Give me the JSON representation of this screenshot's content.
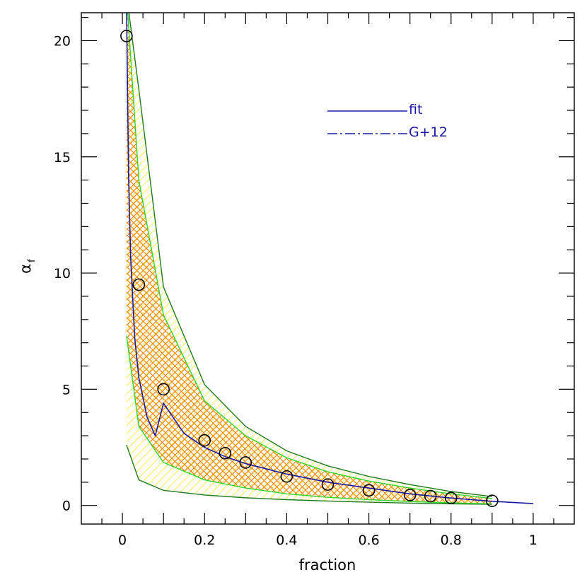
{
  "chart_data": {
    "type": "line",
    "xlabel": "fraction",
    "ylabel": "α",
    "ylabel_subscript": "f",
    "xlim": [
      -0.1,
      1.1
    ],
    "ylim": [
      -0.8,
      21.2
    ],
    "x_ticks": [
      0,
      0.2,
      0.4,
      0.6,
      0.8,
      1
    ],
    "x_tick_labels": [
      "0",
      "0.2",
      "0.4",
      "0.6",
      "0.8",
      "1"
    ],
    "y_ticks": [
      0,
      5,
      10,
      15,
      20
    ],
    "y_tick_labels": [
      "0",
      "5",
      "10",
      "15",
      "20"
    ],
    "x_minor_step": 0.05,
    "y_minor_step": 1,
    "grid": false,
    "legend": {
      "position": "top-right",
      "entries": [
        {
          "label": "fit",
          "style": "solid",
          "color": "#1a1aa6"
        },
        {
          "label": "G+12",
          "style": "dash-dot",
          "color": "#1a1aa6"
        }
      ]
    },
    "series": [
      {
        "name": "fit",
        "kind": "line",
        "color": "#1a1aa6",
        "x": [
          0.01,
          0.015,
          0.02,
          0.03,
          0.04,
          0.06,
          0.08,
          0.1,
          0.15,
          0.2,
          0.25,
          0.3,
          0.4,
          0.5,
          0.6,
          0.7,
          0.8,
          0.9,
          1.0
        ],
        "y": [
          21.5,
          14.2,
          10.7,
          7.2,
          5.5,
          3.8,
          3.0,
          4.4,
          3.1,
          2.5,
          2.1,
          1.8,
          1.35,
          1.0,
          0.75,
          0.5,
          0.32,
          0.18,
          0.08
        ]
      },
      {
        "name": "data",
        "kind": "markers",
        "marker": "open-circle",
        "color": "#000000",
        "x": [
          0.01,
          0.04,
          0.1,
          0.2,
          0.25,
          0.3,
          0.4,
          0.5,
          0.6,
          0.7,
          0.75,
          0.8,
          0.9
        ],
        "y": [
          20.2,
          9.5,
          5.0,
          2.8,
          2.25,
          1.85,
          1.25,
          0.9,
          0.65,
          0.45,
          0.4,
          0.32,
          0.2
        ]
      }
    ],
    "bands": [
      {
        "kind": "outer",
        "edge_color": "#1f7a1f",
        "hatch_color": "#f2e600",
        "x": [
          0.01,
          0.04,
          0.1,
          0.2,
          0.3,
          0.4,
          0.5,
          0.6,
          0.7,
          0.8,
          0.9
        ],
        "upper": [
          22,
          17.9,
          9.4,
          5.2,
          3.4,
          2.35,
          1.7,
          1.25,
          0.9,
          0.6,
          0.38
        ],
        "lower": [
          2.6,
          1.1,
          0.65,
          0.45,
          0.33,
          0.25,
          0.19,
          0.14,
          0.1,
          0.07,
          0.05
        ]
      },
      {
        "kind": "inner",
        "edge_color": "#2fd62f",
        "hatch_color": "#f28a00",
        "x": [
          0.01,
          0.04,
          0.1,
          0.2,
          0.3,
          0.4,
          0.5,
          0.6,
          0.7,
          0.8,
          0.9
        ],
        "upper": [
          22,
          14.0,
          8.2,
          4.5,
          3.0,
          2.05,
          1.45,
          1.05,
          0.75,
          0.5,
          0.3
        ],
        "lower": [
          7.3,
          3.4,
          1.85,
          1.1,
          0.75,
          0.5,
          0.35,
          0.25,
          0.17,
          0.11,
          0.07
        ]
      }
    ]
  }
}
